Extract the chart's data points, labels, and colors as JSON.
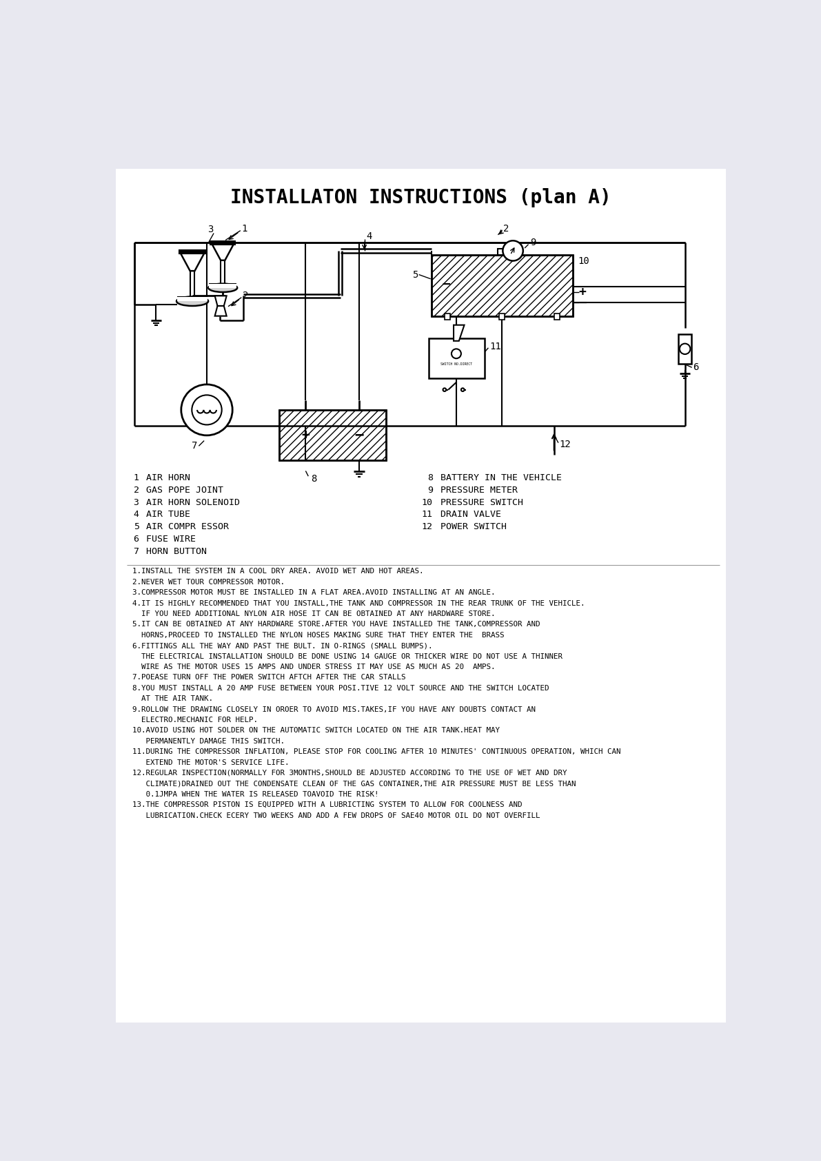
{
  "title": "INSTALLATON INSTRUCTIONS (plan A)",
  "title_fontsize": 20,
  "bg_color": "#e8e8f0",
  "line_color": "#000000",
  "legend_items_left": [
    [
      "1",
      "AIR HORN"
    ],
    [
      "2",
      "GAS POPE JOINT"
    ],
    [
      "3",
      "AIR HORN SOLENOID"
    ],
    [
      "4",
      "AIR TUBE"
    ],
    [
      "5",
      "AIR COMPR ESSOR"
    ],
    [
      "6",
      "FUSE WIRE"
    ],
    [
      "7",
      "HORN BUTTON"
    ]
  ],
  "legend_items_right": [
    [
      "8",
      "BATTERY IN THE VEHICLE"
    ],
    [
      "9",
      "PRESSURE METER"
    ],
    [
      "10",
      "PRESSURE SWITCH"
    ],
    [
      "11",
      "DRAIN VALVE"
    ],
    [
      "12",
      "POWER SWITCH"
    ]
  ],
  "instructions": [
    "1.INSTALL THE SYSTEM IN A COOL DRY AREA. AVOID WET AND HOT AREAS.",
    "2.NEVER WET TOUR COMPRESSOR MOTOR.",
    "3.COMPRESSOR MOTOR MUST BE INSTALLED IN A FLAT AREA.AVOID INSTALLING AT AN ANGLE.",
    "4.IT IS HIGHLY RECOMMENDED THAT YOU INSTALL,THE TANK AND COMPRESSOR IN THE REAR TRUNK OF THE VEHICLE.",
    "  IF YOU NEED ADDITIONAL NYLON AIR HOSE IT CAN BE OBTAINED AT ANY HARDWARE STORE.",
    "5.IT CAN BE OBTAINED AT ANY HARDWARE STORE.AFTER YOU HAVE INSTALLED THE TANK,COMPRESSOR AND",
    "  HORNS,PROCEED TO INSTALLED THE NYLON HOSES MAKING SURE THAT THEY ENTER THE  BRASS",
    "6.FITTINGS ALL THE WAY AND PAST THE BULT. IN O-RINGS (SMALL BUMPS).",
    "  THE ELECTRICAL INSTALLATION SHOULD BE DONE USING 14 GAUGE OR THICKER WIRE DO NOT USE A THINNER",
    "  WIRE AS THE MOTOR USES 15 AMPS AND UNDER STRESS IT MAY USE AS MUCH AS 20  AMPS.",
    "7.POEASE TURN OFF THE POWER SWITCH AFTCH AFTER THE CAR STALLS",
    "8.YOU MUST INSTALL A 20 AMP FUSE BETWEEN YOUR POSI.TIVE 12 VOLT SOURCE AND THE SWITCH LOCATED",
    "  AT THE AIR TANK.",
    "9.ROLLOW THE DRAWING CLOSELY IN OROER TO AVOID MIS.TAKES,IF YOU HAVE ANY DOUBTS CONTACT AN",
    "  ELECTRO.MECHANIC FOR HELP.",
    "10.AVOID USING HOT SOLDER ON THE AUTOMATIC SWITCH LOCATED ON THE AIR TANK.HEAT MAY",
    "   PERMANENTLY DAMAGE THIS SWITCH.",
    "11.DURING THE COMPRESSOR INFLATION, PLEASE STOP FOR COOLING AFTER 10 MINUTES' CONTINUOUS OPERATION, WHICH CAN",
    "   EXTEND THE MOTOR'S SERVICE LIFE.",
    "12.REGULAR INSPECTION(NORMALLY FOR 3MONTHS,SHOULD BE ADJUSTED ACCORDING TO THE USE OF WET AND DRY",
    "   CLIMATE)DRAINED OUT THE CONDENSATE CLEAN OF THE GAS CONTAINER,THE AIR PRESSURE MUST BE LESS THAN",
    "   0.1JMPA WHEN THE WATER IS RELEASED TOAVOID THE RISK!",
    "13.THE COMPRESSOR PISTON IS EQUIPPED WITH A LUBRICTING SYSTEM TO ALLOW FOR COOLNESS AND",
    "   LUBRICATION.CHECK ECERY TWO WEEKS AND ADD A FEW DROPS OF SAE40 MOTOR OIL DO NOT OVERFILL"
  ]
}
